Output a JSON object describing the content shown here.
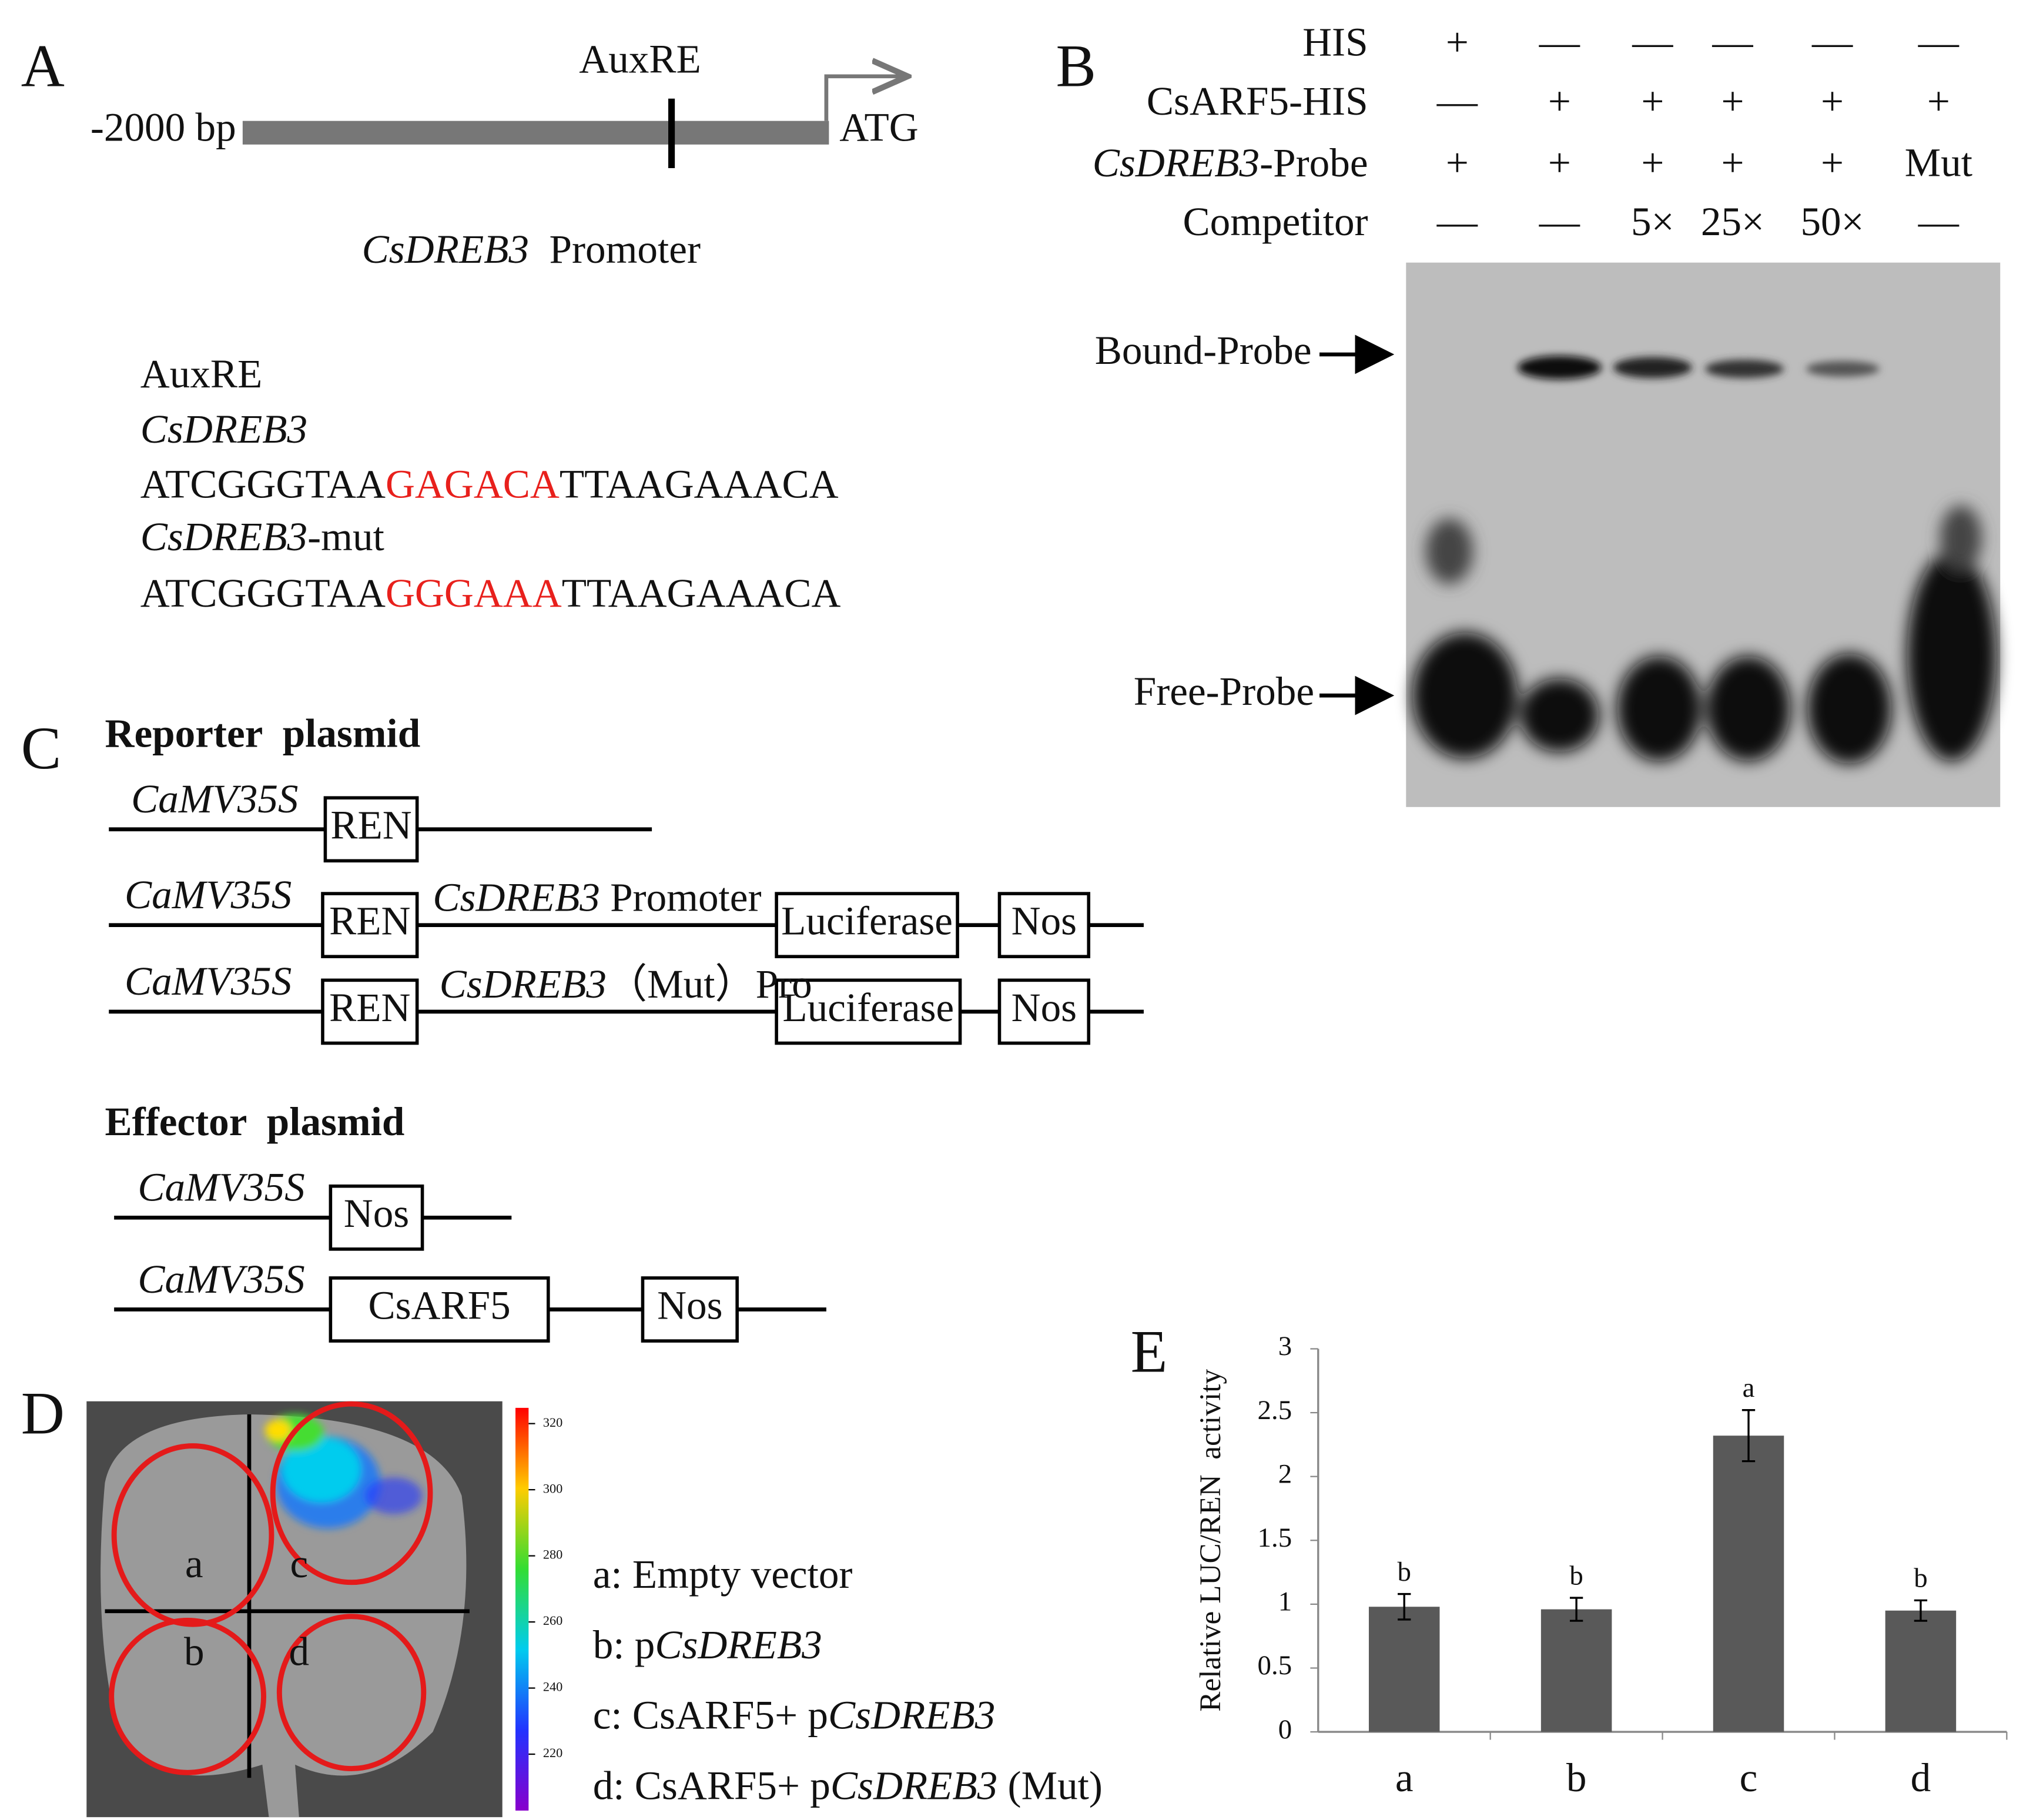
{
  "panel_a": {
    "label": "A",
    "marker": "AuxRE",
    "start": "-2000 bp",
    "end": "ATG",
    "caption": [
      {
        "text": "CsDREB3",
        "italic": true
      },
      {
        "text": "  Promoter"
      }
    ],
    "sequences": [
      [
        {
          "text": "AuxRE"
        }
      ],
      [
        {
          "text": "CsDREB3",
          "italic": true
        }
      ],
      [
        {
          "text": "ATCGGGTAA"
        },
        {
          "text": "GAGACA",
          "color": "#e8201c"
        },
        {
          "text": "TTAAGAAACA"
        }
      ],
      [
        {
          "text": "CsDREB3",
          "italic": true
        },
        {
          "text": "-mut"
        }
      ],
      [
        {
          "text": "ATCGGGTAA"
        },
        {
          "text": "GGGAAA",
          "color": "#e8201c"
        },
        {
          "text": "TTAAGAAACA"
        }
      ]
    ]
  },
  "panel_b": {
    "label": "B",
    "rows": [
      {
        "name": [
          {
            "text": "HIS"
          }
        ],
        "lanes": [
          "+",
          "—",
          "—",
          "—",
          "—",
          "—"
        ]
      },
      {
        "name": [
          {
            "text": "CsARF5-HIS"
          }
        ],
        "lanes": [
          "—",
          "+",
          "+",
          "+",
          "+",
          "+"
        ]
      },
      {
        "name": [
          {
            "text": "CsDREB3",
            "italic": true
          },
          {
            "text": "-Probe"
          }
        ],
        "lanes": [
          "+",
          "+",
          "+",
          "+",
          "+",
          "Mut"
        ]
      },
      {
        "name": [
          {
            "text": "Competitor"
          }
        ],
        "lanes": [
          "—",
          "—",
          "5×",
          "25×",
          "50×",
          "—"
        ]
      }
    ],
    "bands": [
      "Bound-Probe",
      "Free-Probe"
    ]
  },
  "panel_c": {
    "label": "C",
    "groups": [
      {
        "title": "Reporter  plasmid",
        "constructs": [
          {
            "promoter": "CaMV35S",
            "boxes": [
              "REN"
            ]
          },
          {
            "promoter": "CaMV35S",
            "boxes": [
              "REN",
              "Luciferase",
              "Nos"
            ],
            "insert": [
              {
                "text": "CsDREB3",
                "italic": true
              },
              {
                "text": " Promoter"
              }
            ]
          },
          {
            "promoter": "CaMV35S",
            "boxes": [
              "REN",
              "Luciferase",
              "Nos"
            ],
            "insert": [
              {
                "text": "CsDREB3",
                "italic": true
              },
              {
                "text": "（Mut）Pro"
              }
            ]
          }
        ]
      },
      {
        "title": "Effector  plasmid",
        "constructs": [
          {
            "promoter": "CaMV35S",
            "boxes": [
              "Nos"
            ]
          },
          {
            "promoter": "CaMV35S",
            "boxes": [
              "CsARF5",
              "Nos"
            ]
          }
        ]
      }
    ]
  },
  "panel_d": {
    "label": "D",
    "sectors": [
      "a",
      "c",
      "b",
      "d"
    ],
    "colorbar_ticks": [
      320,
      300,
      280,
      260,
      240,
      220
    ],
    "legend": [
      [
        {
          "text": "a: Empty vector"
        }
      ],
      [
        {
          "text": "b: p"
        },
        {
          "text": "CsDREB3",
          "italic": true
        }
      ],
      [
        {
          "text": "c: CsARF5+ p"
        },
        {
          "text": "CsDREB3",
          "italic": true
        }
      ],
      [
        {
          "text": "d: CsARF5+ p"
        },
        {
          "text": "CsDREB3",
          "italic": true
        },
        {
          "text": " (Mut)"
        }
      ]
    ]
  },
  "chart_data": {
    "type": "bar",
    "label": "E",
    "ylabel": "Relative LUC/REN  activity",
    "categories": [
      "a",
      "b",
      "c",
      "d"
    ],
    "values": [
      0.98,
      0.96,
      2.32,
      0.95
    ],
    "errors": [
      0.1,
      0.09,
      0.2,
      0.08
    ],
    "annotations": [
      "b",
      "b",
      "a",
      "b"
    ],
    "color": "#595959",
    "ylim": [
      0,
      3
    ],
    "yticks": [
      0,
      0.5,
      1,
      1.5,
      2,
      2.5,
      3
    ]
  }
}
